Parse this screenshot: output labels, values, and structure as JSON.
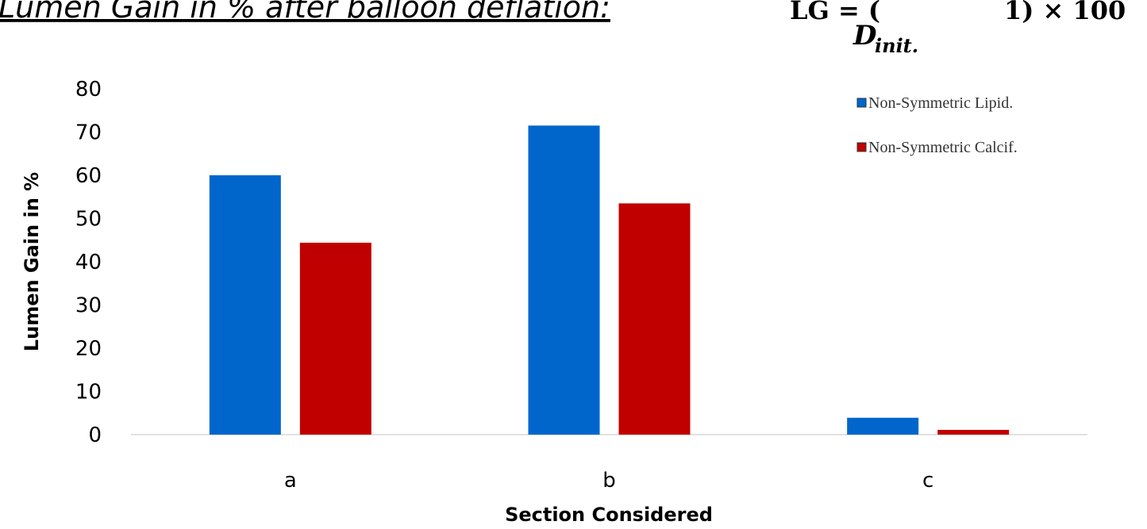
{
  "chart_data": {
    "type": "bar",
    "title": "Lumen Gain in % after balloon deflation:",
    "formula": {
      "left": "LG = (",
      "right": "1) × 100",
      "denominator": "D",
      "subscript": "init."
    },
    "x_label": "Section Considered",
    "y_label": "Lumen Gain in %",
    "categories": [
      "a",
      "b",
      "c"
    ],
    "series": [
      {
        "name": "Non-Symmetric Lipid.",
        "color": "#0066cc",
        "values": [
          60,
          71.5,
          3.9
        ]
      },
      {
        "name": "Non-Symmetric Calcif.",
        "color": "#c00000",
        "values": [
          44.4,
          53.5,
          1.1
        ]
      }
    ],
    "ylim": [
      0,
      80
    ],
    "yticks": [
      0,
      10,
      20,
      30,
      40,
      50,
      60,
      70,
      80
    ],
    "grid": false,
    "legend": "top-right"
  }
}
